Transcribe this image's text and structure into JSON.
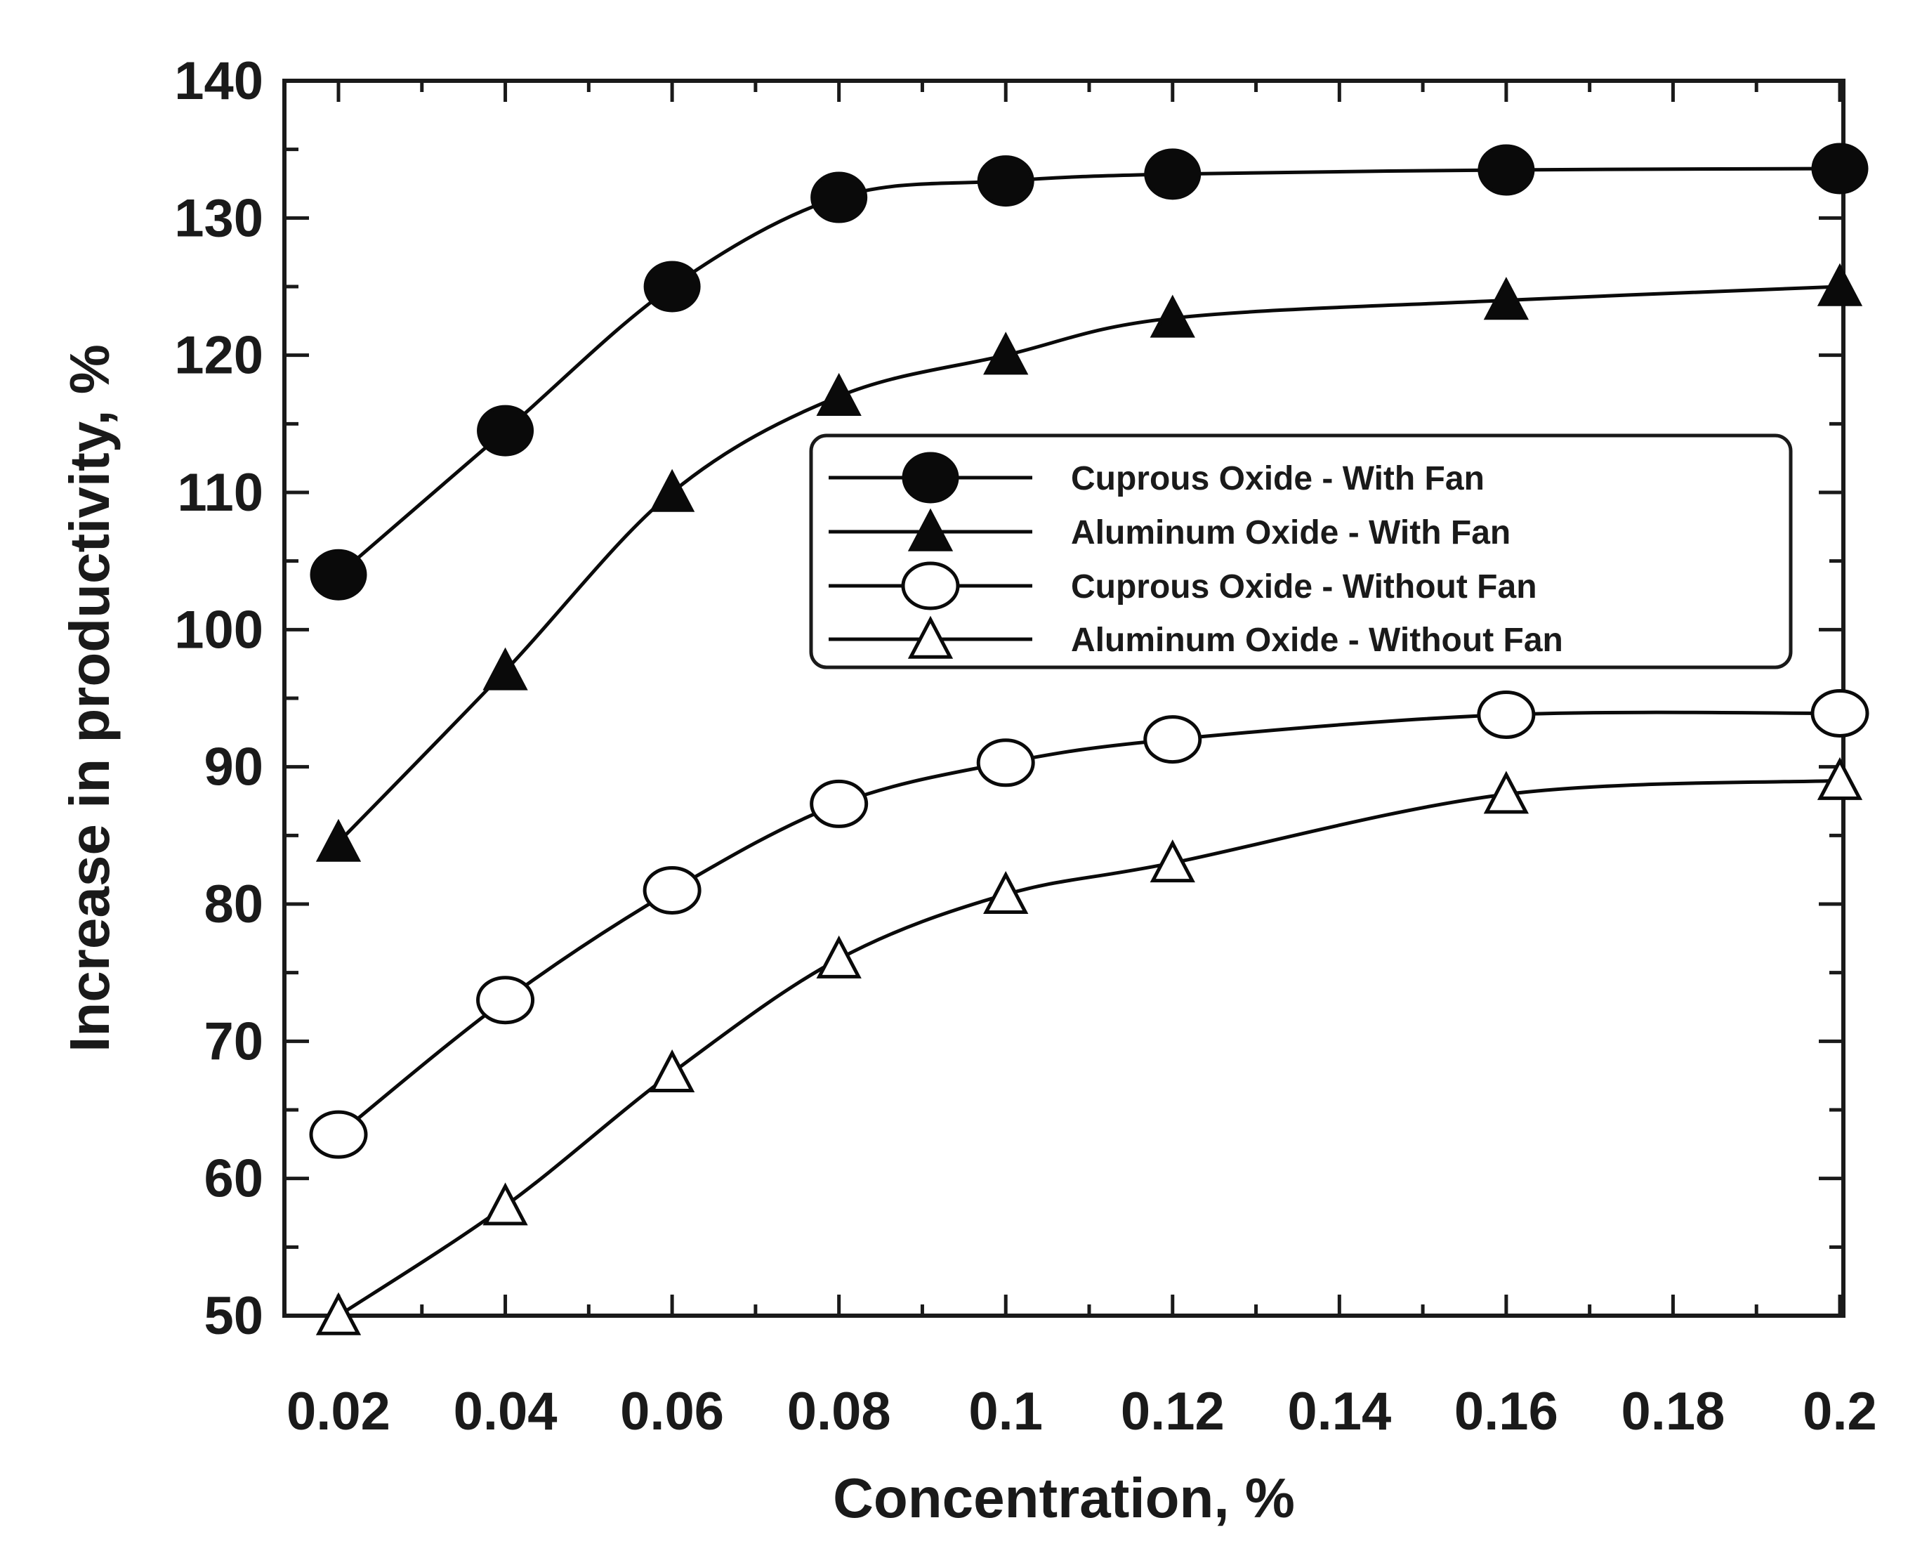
{
  "chart_data": {
    "type": "line",
    "title": "",
    "xlabel": "Concentration, %",
    "ylabel": "Increase in productivity, %",
    "xlim": [
      0.02,
      0.2
    ],
    "ylim": [
      50,
      140
    ],
    "x_ticks": [
      "0.02",
      "0.04",
      "0.06",
      "0.08",
      "0.1",
      "0.12",
      "0.14",
      "0.16",
      "0.18",
      "0.2"
    ],
    "y_ticks": [
      "50",
      "60",
      "70",
      "80",
      "90",
      "100",
      "110",
      "120",
      "130",
      "140"
    ],
    "x": [
      0.02,
      0.04,
      0.06,
      0.08,
      0.1,
      0.12,
      0.16,
      0.2
    ],
    "legend_position": "center-right",
    "series": [
      {
        "name": "Cuprous Oxide - With Fan",
        "marker": "filled-circle",
        "values": [
          104,
          114.5,
          125,
          131.5,
          132.7,
          133.2,
          133.5,
          133.6
        ]
      },
      {
        "name": "Aluminum Oxide - With Fan",
        "marker": "filled-triangle",
        "values": [
          84.5,
          97,
          110,
          117,
          120,
          122.7,
          124,
          125
        ]
      },
      {
        "name": "Cuprous Oxide - Without Fan",
        "marker": "open-circle",
        "values": [
          63.2,
          73,
          81,
          87.3,
          90.3,
          92,
          93.8,
          93.9
        ]
      },
      {
        "name": "Aluminum Oxide - Without Fan",
        "marker": "open-triangle",
        "values": [
          50,
          58,
          67.7,
          76,
          80.7,
          83,
          88,
          89
        ]
      }
    ]
  }
}
